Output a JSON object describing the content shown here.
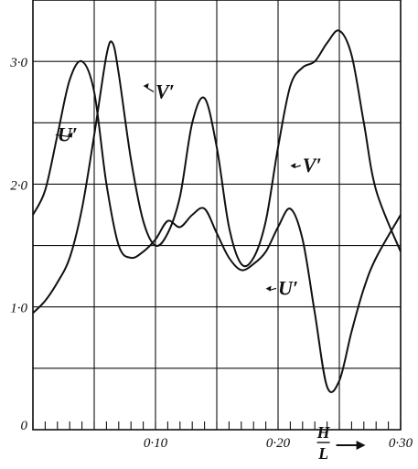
{
  "chart_data": {
    "type": "line",
    "title": "",
    "xlabel": {
      "numerator": "H",
      "denominator": "L"
    },
    "ylabel": "",
    "xlim": [
      0,
      0.3
    ],
    "ylim": [
      0,
      3.2
    ],
    "grid": true,
    "x_tick_labels": [
      {
        "value": 0.1,
        "label": "0·10"
      },
      {
        "value": 0.2,
        "label": "0·20"
      },
      {
        "value": 0.3,
        "label": "0·30"
      }
    ],
    "y_tick_labels": [
      {
        "value": 0,
        "label": "0"
      },
      {
        "value": 1.0,
        "label": "1·0"
      },
      {
        "value": 2.0,
        "label": "2·0"
      },
      {
        "value": 3.0,
        "label": "3·0"
      }
    ],
    "series": [
      {
        "name": "U′",
        "points": [
          [
            0.0,
            1.75
          ],
          [
            0.01,
            1.95
          ],
          [
            0.02,
            2.4
          ],
          [
            0.03,
            2.85
          ],
          [
            0.04,
            3.0
          ],
          [
            0.05,
            2.75
          ],
          [
            0.06,
            2.0
          ],
          [
            0.07,
            1.5
          ],
          [
            0.08,
            1.4
          ],
          [
            0.09,
            1.45
          ],
          [
            0.1,
            1.55
          ],
          [
            0.11,
            1.7
          ],
          [
            0.12,
            1.65
          ],
          [
            0.13,
            1.75
          ],
          [
            0.14,
            1.8
          ],
          [
            0.15,
            1.6
          ],
          [
            0.16,
            1.4
          ],
          [
            0.17,
            1.3
          ],
          [
            0.18,
            1.35
          ],
          [
            0.19,
            1.45
          ],
          [
            0.2,
            1.65
          ],
          [
            0.21,
            1.8
          ],
          [
            0.22,
            1.55
          ],
          [
            0.23,
            0.95
          ],
          [
            0.24,
            0.35
          ],
          [
            0.25,
            0.4
          ],
          [
            0.26,
            0.8
          ],
          [
            0.27,
            1.15
          ],
          [
            0.28,
            1.4
          ],
          [
            0.3,
            1.75
          ]
        ]
      },
      {
        "name": "V′",
        "points": [
          [
            0.0,
            0.95
          ],
          [
            0.01,
            1.05
          ],
          [
            0.02,
            1.2
          ],
          [
            0.03,
            1.4
          ],
          [
            0.04,
            1.8
          ],
          [
            0.05,
            2.4
          ],
          [
            0.06,
            3.05
          ],
          [
            0.065,
            3.15
          ],
          [
            0.07,
            2.9
          ],
          [
            0.08,
            2.2
          ],
          [
            0.09,
            1.7
          ],
          [
            0.1,
            1.5
          ],
          [
            0.11,
            1.6
          ],
          [
            0.12,
            1.9
          ],
          [
            0.13,
            2.5
          ],
          [
            0.14,
            2.7
          ],
          [
            0.15,
            2.3
          ],
          [
            0.16,
            1.65
          ],
          [
            0.17,
            1.35
          ],
          [
            0.18,
            1.4
          ],
          [
            0.19,
            1.7
          ],
          [
            0.2,
            2.3
          ],
          [
            0.21,
            2.8
          ],
          [
            0.22,
            2.95
          ],
          [
            0.23,
            3.0
          ],
          [
            0.24,
            3.15
          ],
          [
            0.25,
            3.25
          ],
          [
            0.26,
            3.05
          ],
          [
            0.27,
            2.5
          ],
          [
            0.28,
            1.95
          ],
          [
            0.3,
            1.45
          ]
        ]
      }
    ],
    "annotations": [
      {
        "text": "U′",
        "x": 0.02,
        "y": 2.35,
        "arrow_to": [
          0.028,
          2.4
        ]
      },
      {
        "text": "V′",
        "x": 0.1,
        "y": 2.7,
        "arrow_to": [
          0.09,
          2.8
        ]
      },
      {
        "text": "V′",
        "x": 0.22,
        "y": 2.1,
        "arrow_to": [
          0.21,
          2.15
        ]
      },
      {
        "text": "U′",
        "x": 0.2,
        "y": 1.1,
        "arrow_to": [
          0.19,
          1.15
        ]
      }
    ]
  }
}
